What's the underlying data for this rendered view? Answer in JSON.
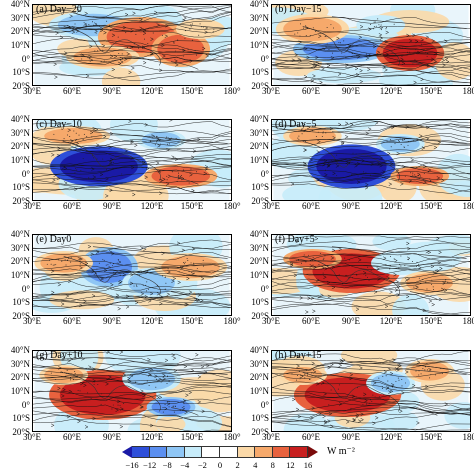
{
  "panels": [
    {
      "title": "(a) Day−20"
    },
    {
      "title": "(b) Day−15"
    },
    {
      "title": "(c) Day−10"
    },
    {
      "title": "(d) Day−5"
    },
    {
      "title": "(e) Day0"
    },
    {
      "title": "(f) Day+5"
    },
    {
      "title": "(g) Day+10"
    },
    {
      "title": "(h) Day+15"
    }
  ],
  "lat_labels": [
    "40°N",
    "30°N",
    "20°N",
    "10°N",
    "0°",
    "10°S",
    "20°S"
  ],
  "lon_labels": [
    "30°E",
    "60°E",
    "90°E",
    "120°E",
    "150°E",
    "180°"
  ],
  "colorbar": {
    "ticks": [
      "−16",
      "−12",
      "−8",
      "−4",
      "−2",
      "0",
      "2",
      "4",
      "8",
      "12",
      "16"
    ],
    "unit": "W m⁻²",
    "colors": [
      "#1a1aa6",
      "#2e4fd9",
      "#5b8ff0",
      "#8fc6f5",
      "#c7ecfa",
      "#ffffff",
      "#ffffff",
      "#fbd9a8",
      "#f6a96b",
      "#e8623e",
      "#c81f1f",
      "#7a0a0a"
    ]
  }
}
